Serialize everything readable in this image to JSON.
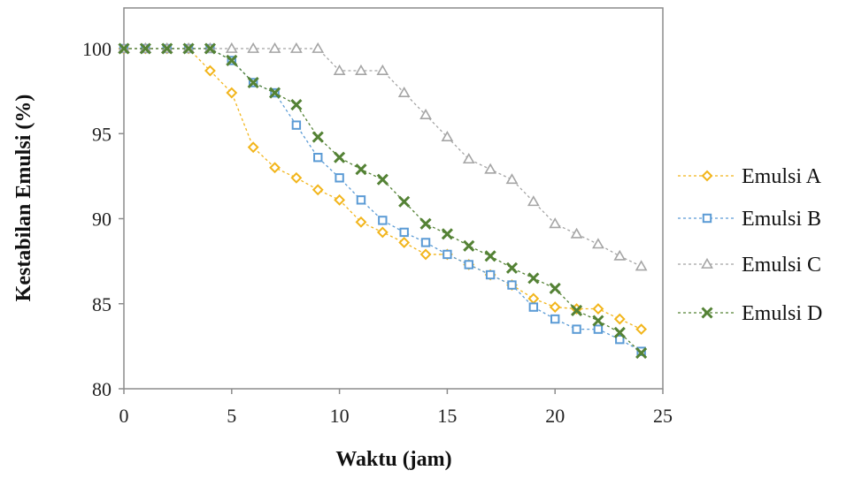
{
  "chart_data": {
    "type": "line",
    "title": "",
    "xlabel": "Waktu  (jam)",
    "ylabel": "Kestabilan Emulsi (%)",
    "xlim": [
      0,
      25
    ],
    "ylim": [
      80,
      100
    ],
    "x_ticks": [
      "0",
      "5",
      "10",
      "15",
      "20",
      "25"
    ],
    "y_ticks": [
      "80",
      "85",
      "90",
      "95",
      "100"
    ],
    "grid": false,
    "legend_position": "right",
    "x": [
      0,
      1,
      2,
      3,
      4,
      5,
      6,
      7,
      8,
      9,
      10,
      11,
      12,
      13,
      14,
      15,
      16,
      17,
      18,
      19,
      20,
      21,
      22,
      23,
      24
    ],
    "series": [
      {
        "name": "Emulsi A",
        "color": "#f2b51b",
        "marker": "diamond",
        "values": [
          100,
          100,
          100,
          100,
          98.7,
          97.4,
          94.2,
          93.0,
          92.4,
          91.7,
          91.1,
          89.8,
          89.2,
          88.6,
          87.9,
          87.9,
          87.3,
          86.7,
          86.1,
          85.3,
          84.8,
          84.7,
          84.7,
          84.1,
          83.5
        ]
      },
      {
        "name": "Emulsi B",
        "color": "#5b9bd5",
        "marker": "square",
        "values": [
          100,
          100,
          100,
          100,
          100,
          99.3,
          98.0,
          97.4,
          95.5,
          93.6,
          92.4,
          91.1,
          89.9,
          89.2,
          88.6,
          87.9,
          87.3,
          86.7,
          86.1,
          84.8,
          84.1,
          83.5,
          83.5,
          82.9,
          82.2
        ]
      },
      {
        "name": "Emulsi C",
        "color": "#a5a5a5",
        "marker": "triangle",
        "values": [
          100,
          100,
          100,
          100,
          100,
          100,
          100,
          100,
          100,
          100,
          98.7,
          98.7,
          98.7,
          97.4,
          96.1,
          94.8,
          93.5,
          92.9,
          92.3,
          91.0,
          89.7,
          89.1,
          88.5,
          87.8,
          87.2
        ]
      },
      {
        "name": "Emulsi D",
        "color": "#548235",
        "marker": "x",
        "values": [
          100,
          100,
          100,
          100,
          100,
          99.3,
          98.0,
          97.4,
          96.7,
          94.8,
          93.6,
          92.9,
          92.3,
          91.0,
          89.7,
          89.1,
          88.4,
          87.8,
          87.1,
          86.5,
          85.9,
          84.6,
          84.0,
          83.3,
          82.1
        ]
      }
    ]
  }
}
